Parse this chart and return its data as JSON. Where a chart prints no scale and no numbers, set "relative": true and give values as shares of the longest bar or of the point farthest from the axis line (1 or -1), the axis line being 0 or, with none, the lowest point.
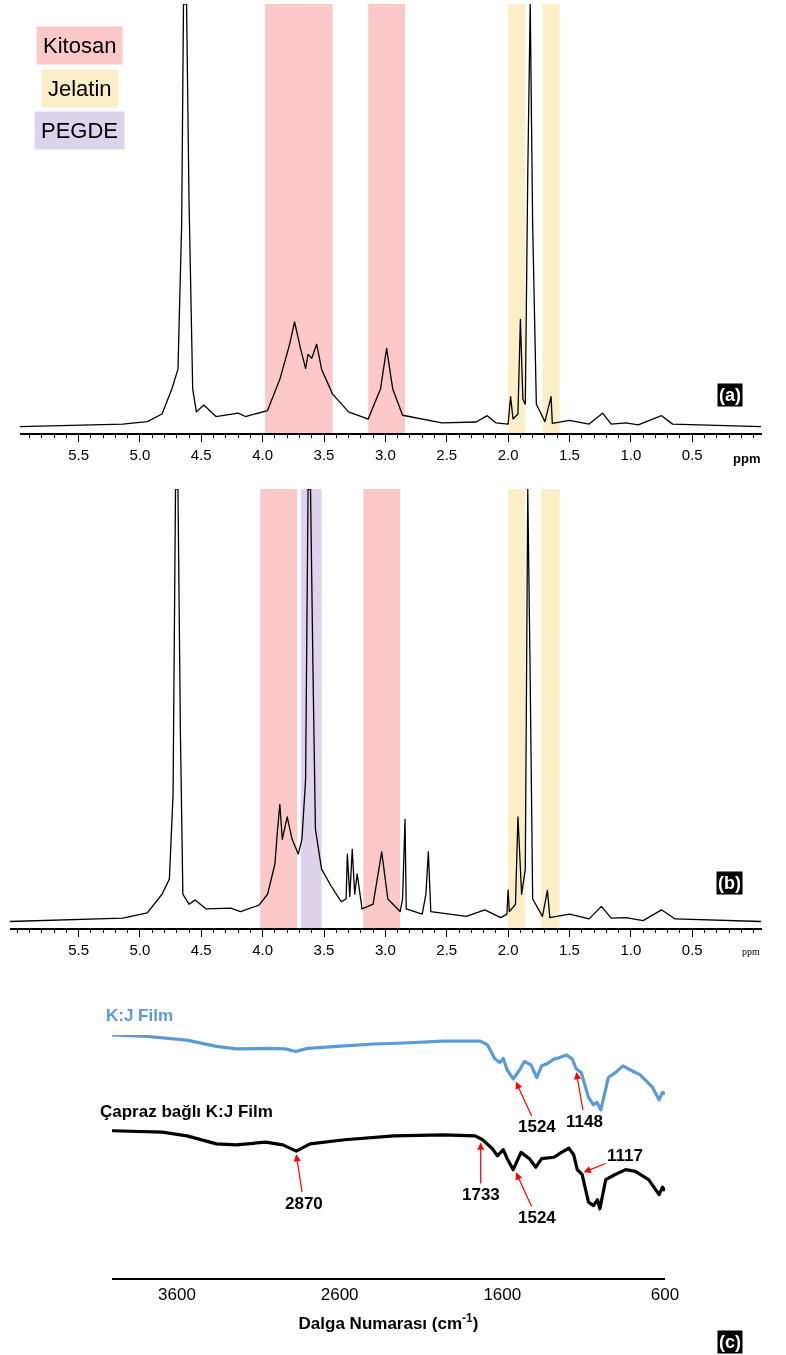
{
  "chart_data": [
    {
      "type": "line",
      "relative": true,
      "xlabel": "ppm",
      "tick_labels": "x",
      "xlim": [
        5.98,
        -0.07
      ],
      "xticks": [
        {
          "value": 5.9,
          "label": null
        },
        {
          "value": 5.8,
          "label": null
        },
        {
          "value": 5.7,
          "label": null
        },
        {
          "value": 5.6,
          "label": null
        },
        5.5,
        {
          "value": 5.4,
          "label": null
        },
        {
          "value": 5.3,
          "label": null
        },
        {
          "value": 5.2,
          "label": null
        },
        {
          "value": 5.1,
          "label": null
        },
        {
          "value": 5,
          "label": "5.0"
        },
        {
          "value": 4.9,
          "label": null
        },
        {
          "value": 4.8,
          "label": null
        },
        {
          "value": 4.7,
          "label": null
        },
        {
          "value": 4.6,
          "label": null
        },
        4.5,
        {
          "value": 4.4,
          "label": null
        },
        {
          "value": 4.3,
          "label": null
        },
        {
          "value": 4.2,
          "label": null
        },
        {
          "value": 4.1,
          "label": null
        },
        {
          "value": 4,
          "label": "4.0"
        },
        {
          "value": 3.9,
          "label": null
        },
        {
          "value": 3.8,
          "label": null
        },
        {
          "value": 3.7,
          "label": null
        },
        {
          "value": 3.6,
          "label": null
        },
        3.5,
        {
          "value": 3.4,
          "label": null
        },
        {
          "value": 3.3,
          "label": null
        },
        {
          "value": 3.2,
          "label": null
        },
        {
          "value": 3.1,
          "label": null
        },
        {
          "value": 3,
          "label": "3.0"
        },
        {
          "value": 2.9,
          "label": null
        },
        {
          "value": 2.8,
          "label": null
        },
        {
          "value": 2.7,
          "label": null
        },
        {
          "value": 2.6,
          "label": null
        },
        2.5,
        {
          "value": 2.4,
          "label": null
        },
        {
          "value": 2.3,
          "label": null
        },
        {
          "value": 2.2,
          "label": null
        },
        {
          "value": 2.1,
          "label": null
        },
        {
          "value": 2,
          "label": "2.0"
        },
        {
          "value": 1.9,
          "label": null
        },
        {
          "value": 1.8,
          "label": null
        },
        {
          "value": 1.7,
          "label": null
        },
        {
          "value": 1.6,
          "label": null
        },
        1.5,
        {
          "value": 1.4,
          "label": null
        },
        {
          "value": 1.3,
          "label": null
        },
        {
          "value": 1.2,
          "label": null
        },
        {
          "value": 1.1,
          "label": null
        },
        {
          "value": 1,
          "label": "1.0"
        },
        {
          "value": 0.9,
          "label": null
        },
        {
          "value": 0.8,
          "label": null
        },
        {
          "value": 0.7,
          "label": null
        },
        {
          "value": 0.6,
          "label": null
        },
        0.5,
        {
          "value": 0.4,
          "label": null
        },
        {
          "value": 0.3,
          "label": null
        },
        {
          "value": 0.2,
          "label": null
        },
        {
          "value": 0.1,
          "label": null
        },
        {
          "value": 0,
          "label": null
        }
      ],
      "x": [
        5.98,
        5.14,
        4.94,
        4.82,
        4.74,
        4.69,
        4.66,
        4.645,
        4.62,
        4.6,
        4.57,
        4.54,
        4.48,
        4.38,
        4.2,
        4.14,
        3.96,
        3.86,
        3.78,
        3.74,
        3.69,
        3.65,
        3.63,
        3.6,
        3.56,
        3.52,
        3.43,
        3.3,
        3.14,
        3.04,
        2.99,
        2.94,
        2.86,
        2.54,
        2.26,
        2.17,
        2.1,
        2.0,
        1.98,
        1.96,
        1.92,
        1.9,
        1.88,
        1.86,
        1.84,
        1.82,
        1.8,
        1.77,
        1.7,
        1.65,
        1.64,
        1.5,
        1.34,
        1.23,
        1.16,
        1.04,
        0.94,
        0.75,
        0.66,
        -0.06
      ],
      "series": [
        {
          "color": "#000000",
          "values": [
            0,
            0.006,
            0.012,
            0.03,
            0.089,
            0.136,
            0.478,
            1.0,
            1.0,
            0.537,
            0.089,
            0.035,
            0.051,
            0.024,
            0.032,
            0.024,
            0.038,
            0.112,
            0.195,
            0.248,
            0.183,
            0.138,
            0.171,
            0.162,
            0.195,
            0.136,
            0.077,
            0.035,
            0.018,
            0.089,
            0.185,
            0.089,
            0.027,
            0.009,
            0.011,
            0.026,
            0.009,
            0.006,
            0.071,
            0.018,
            0.03,
            0.254,
            0.065,
            0.053,
            0.596,
            1.0,
            0.478,
            0.053,
            0.012,
            0.071,
            0.008,
            0.015,
            0.006,
            0.032,
            0.006,
            0.009,
            0.004,
            0.026,
            0.006,
            0
          ]
        }
      ],
      "bands": [
        {
          "axis": "x",
          "from": 3.98,
          "to": 3.43,
          "color": "#fcc8c8"
        },
        {
          "axis": "x",
          "from": 3.14,
          "to": 2.84,
          "color": "#fcc8c8"
        },
        {
          "axis": "x",
          "from": 2.0,
          "to": 1.86,
          "color": "#fcefc8"
        },
        {
          "axis": "x",
          "from": 1.72,
          "to": 1.58,
          "color": "#fcefc8"
        }
      ],
      "annotations": [
        "(a)",
        "Kitosan",
        "Jelatin",
        "PEGDE"
      ]
    },
    {
      "type": "line",
      "relative": true,
      "xlabel": "ppm",
      "tick_labels": "x",
      "xlim": [
        6.06,
        -0.07
      ],
      "xticks": [
        {
          "value": 6.0,
          "label": null
        },
        {
          "value": 5.9,
          "label": null
        },
        {
          "value": 5.8,
          "label": null
        },
        {
          "value": 5.7,
          "label": null
        },
        {
          "value": 5.6,
          "label": null
        },
        5.5,
        {
          "value": 5.4,
          "label": null
        },
        {
          "value": 5.3,
          "label": null
        },
        {
          "value": 5.2,
          "label": null
        },
        {
          "value": 5.1,
          "label": null
        },
        {
          "value": 5,
          "label": "5.0"
        },
        {
          "value": 4.9,
          "label": null
        },
        {
          "value": 4.8,
          "label": null
        },
        {
          "value": 4.7,
          "label": null
        },
        {
          "value": 4.6,
          "label": null
        },
        4.5,
        {
          "value": 4.4,
          "label": null
        },
        {
          "value": 4.3,
          "label": null
        },
        {
          "value": 4.2,
          "label": null
        },
        {
          "value": 4.1,
          "label": null
        },
        {
          "value": 4,
          "label": "4.0"
        },
        {
          "value": 3.9,
          "label": null
        },
        {
          "value": 3.8,
          "label": null
        },
        {
          "value": 3.7,
          "label": null
        },
        {
          "value": 3.6,
          "label": null
        },
        3.5,
        {
          "value": 3.4,
          "label": null
        },
        {
          "value": 3.3,
          "label": null
        },
        {
          "value": 3.2,
          "label": null
        },
        {
          "value": 3.1,
          "label": null
        },
        {
          "value": 3,
          "label": "3.0"
        },
        {
          "value": 2.9,
          "label": null
        },
        {
          "value": 2.8,
          "label": null
        },
        {
          "value": 2.7,
          "label": null
        },
        {
          "value": 2.6,
          "label": null
        },
        2.5,
        {
          "value": 2.4,
          "label": null
        },
        {
          "value": 2.3,
          "label": null
        },
        {
          "value": 2.2,
          "label": null
        },
        {
          "value": 2.1,
          "label": null
        },
        {
          "value": 2,
          "label": "2.0"
        },
        {
          "value": 1.9,
          "label": null
        },
        {
          "value": 1.8,
          "label": null
        },
        {
          "value": 1.7,
          "label": null
        },
        {
          "value": 1.6,
          "label": null
        },
        1.5,
        {
          "value": 1.4,
          "label": null
        },
        {
          "value": 1.3,
          "label": null
        },
        {
          "value": 1.2,
          "label": null
        },
        {
          "value": 1.1,
          "label": null
        },
        {
          "value": 1,
          "label": "1.0"
        },
        {
          "value": 0.9,
          "label": null
        },
        {
          "value": 0.8,
          "label": null
        },
        {
          "value": 0.7,
          "label": null
        },
        {
          "value": 0.6,
          "label": null
        },
        0.5,
        {
          "value": 0.4,
          "label": null
        },
        {
          "value": 0.3,
          "label": null
        },
        {
          "value": 0.2,
          "label": null
        },
        {
          "value": 0.1,
          "label": null
        },
        {
          "value": 0,
          "label": null
        }
      ],
      "x": [
        6.06,
        5.14,
        4.94,
        4.82,
        4.76,
        4.73,
        4.71,
        4.69,
        4.67,
        4.65,
        4.6,
        4.55,
        4.46,
        4.26,
        4.18,
        4.03,
        3.96,
        3.9,
        3.88,
        3.86,
        3.84,
        3.8,
        3.76,
        3.71,
        3.68,
        3.65,
        3.63,
        3.61,
        3.59,
        3.57,
        3.52,
        3.44,
        3.36,
        3.32,
        3.31,
        3.29,
        3.27,
        3.25,
        3.23,
        3.19,
        3.1,
        3.03,
        2.98,
        2.88,
        2.86,
        2.84,
        2.83,
        2.7,
        2.67,
        2.65,
        2.63,
        2.34,
        2.19,
        2.06,
        2.01,
        2.0,
        1.99,
        1.94,
        1.92,
        1.89,
        1.86,
        1.84,
        1.82,
        1.8,
        1.72,
        1.68,
        1.66,
        1.5,
        1.34,
        1.24,
        1.16,
        1.04,
        0.9,
        0.75,
        0.64,
        -0.06
      ],
      "series": [
        {
          "color": "#000000",
          "values": [
            0,
            0.008,
            0.02,
            0.063,
            0.098,
            0.294,
            1.0,
            1.0,
            0.433,
            0.063,
            0.04,
            0.05,
            0.029,
            0.031,
            0.023,
            0.038,
            0.063,
            0.133,
            0.208,
            0.271,
            0.19,
            0.242,
            0.19,
            0.156,
            0.19,
            0.329,
            1.0,
            1.0,
            0.582,
            0.213,
            0.121,
            0.081,
            0.046,
            0.052,
            0.156,
            0.058,
            0.167,
            0.063,
            0.11,
            0.029,
            0.04,
            0.161,
            0.052,
            0.023,
            0.052,
            0.236,
            0.029,
            0.017,
            0.063,
            0.161,
            0.023,
            0.012,
            0.027,
            0.009,
            0.017,
            0.073,
            0.023,
            0.04,
            0.242,
            0.063,
            0.121,
            1.0,
            0.559,
            0.052,
            0.012,
            0.072,
            0.009,
            0.017,
            0.006,
            0.035,
            0.008,
            0.009,
            0.002,
            0.027,
            0.006,
            0
          ]
        }
      ],
      "bands": [
        {
          "axis": "x",
          "from": 4.02,
          "to": 3.72,
          "color": "#fcc8c8"
        },
        {
          "axis": "x",
          "from": 3.69,
          "to": 3.52,
          "color": "#ddd3ea"
        },
        {
          "axis": "x",
          "from": 3.18,
          "to": 2.88,
          "color": "#fcc8c8"
        },
        {
          "axis": "x",
          "from": 2.0,
          "to": 1.86,
          "color": "#fcefc8"
        },
        {
          "axis": "x",
          "from": 1.73,
          "to": 1.58,
          "color": "#fcefc8"
        }
      ],
      "annotations": [
        "(b)"
      ]
    },
    {
      "type": "line",
      "relative": true,
      "xlabel": "Dalga Numarası (cm$^{-1}$)",
      "tick_labels": "x",
      "xlim": [
        4000,
        600
      ],
      "xticks": [
        3600,
        2600,
        1600,
        600
      ],
      "series": [
        {
          "name": "K:J Film",
          "color": "#5b9bd5",
          "x": [
            4000,
            3782,
            3539,
            3358,
            3236,
            3055,
            2933,
            2873,
            2797,
            2570,
            2388,
            2206,
            1964,
            1736,
            1691,
            1645,
            1615,
            1594,
            1570,
            1533,
            1494,
            1464,
            1424,
            1388,
            1358,
            1327,
            1282,
            1252,
            1206,
            1170,
            1145,
            1115,
            1070,
            1039,
            1018,
            994,
            948,
            903,
            858,
            812,
            752,
            676,
            636,
            615,
            600
          ],
          "values": [
            1.0,
            0.994,
            0.979,
            0.953,
            0.943,
            0.945,
            0.943,
            0.932,
            0.945,
            0.955,
            0.963,
            0.967,
            0.975,
            0.975,
            0.959,
            0.901,
            0.887,
            0.903,
            0.856,
            0.819,
            0.856,
            0.891,
            0.877,
            0.825,
            0.873,
            0.881,
            0.901,
            0.906,
            0.918,
            0.901,
            0.86,
            0.846,
            0.743,
            0.713,
            0.723,
            0.692,
            0.825,
            0.846,
            0.873,
            0.856,
            0.836,
            0.784,
            0.733,
            0.764,
            0.758
          ]
        },
        {
          "name": "Çapraz bağlı K:J Film",
          "color": "#000000",
          "x": [
            4000,
            3691,
            3539,
            3358,
            3236,
            3055,
            2949,
            2867,
            2782,
            2570,
            2267,
            1964,
            1767,
            1721,
            1661,
            1630,
            1594,
            1570,
            1533,
            1485,
            1433,
            1394,
            1358,
            1282,
            1236,
            1191,
            1161,
            1139,
            1109,
            1070,
            1039,
            1015,
            1000,
            964,
            909,
            842,
            782,
            700,
            636,
            615,
            600
          ],
          "values": [
            0.606,
            0.6,
            0.585,
            0.552,
            0.548,
            0.559,
            0.548,
            0.522,
            0.552,
            0.569,
            0.585,
            0.589,
            0.585,
            0.569,
            0.532,
            0.503,
            0.528,
            0.491,
            0.446,
            0.517,
            0.491,
            0.456,
            0.491,
            0.497,
            0.517,
            0.534,
            0.507,
            0.446,
            0.425,
            0.312,
            0.298,
            0.322,
            0.285,
            0.405,
            0.425,
            0.446,
            0.439,
            0.405,
            0.343,
            0.374,
            0.359
          ]
        }
      ],
      "annotations": [
        "(c)",
        {
          "text": "1524",
          "x": 1524,
          "y": 0.819
        },
        {
          "text": "1148",
          "x": 1148,
          "y": 0.86
        },
        {
          "text": "2870",
          "x": 2870,
          "y": 0.522
        },
        {
          "text": "1733",
          "x": 1733,
          "y": 0.57
        },
        {
          "text": "1524",
          "x": 1524,
          "y": 0.446
        },
        {
          "text": "1117",
          "x": 1117,
          "y": 0.43
        }
      ]
    }
  ]
}
